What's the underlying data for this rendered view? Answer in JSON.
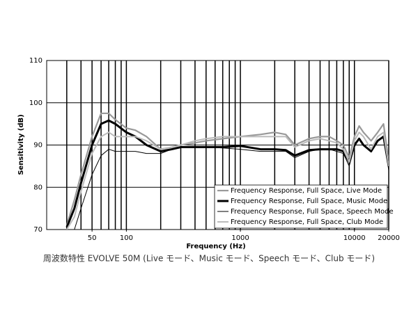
{
  "chart_data": {
    "type": "line",
    "x_label": "Frequency (Hz)",
    "y_label": "Sensitivity (dB)",
    "caption": "周波数特性 EVOLVE 50M (Live モード、Music モード、Speech モード、Club モード)",
    "log_x": true,
    "xlim": [
      20,
      20000
    ],
    "ylim": [
      70,
      110
    ],
    "xticks": [
      50,
      100,
      1000,
      10000,
      20000
    ],
    "yticks": [
      70,
      80,
      90,
      100,
      110
    ],
    "xgrid": [
      30,
      40,
      50,
      60,
      70,
      80,
      90,
      100,
      200,
      300,
      400,
      500,
      600,
      700,
      800,
      900,
      1000,
      2000,
      3000,
      4000,
      5000,
      6000,
      7000,
      8000,
      9000,
      10000,
      20000
    ],
    "grid": true,
    "legend": "lower right",
    "x": [
      30,
      35,
      40,
      50,
      60,
      70,
      80,
      100,
      120,
      150,
      200,
      250,
      300,
      400,
      500,
      700,
      1000,
      1500,
      2000,
      2500,
      3000,
      4000,
      5000,
      6000,
      7000,
      8000,
      9000,
      10000,
      11000,
      12000,
      14000,
      16000,
      18000,
      20000
    ],
    "series": [
      {
        "name": "Frequency Response, Full Space, Live Mode",
        "color": "#999999",
        "width": 2.2,
        "values": [
          71,
          77,
          83,
          92,
          97.5,
          97.5,
          96,
          94,
          93.5,
          92,
          89,
          89.5,
          90,
          90.5,
          91,
          91.5,
          92,
          92.5,
          93,
          92.5,
          90,
          91.5,
          92,
          92,
          91,
          90,
          87,
          92,
          94.5,
          93,
          91,
          93,
          95,
          86
        ]
      },
      {
        "name": "Frequency Response, Full Space, Music Mode",
        "color": "#000000",
        "width": 3,
        "values": [
          70.5,
          75,
          81,
          90,
          95,
          95.8,
          95,
          93,
          92,
          90,
          88.5,
          89,
          89.5,
          89.5,
          89.5,
          89.5,
          89.8,
          89,
          89,
          88.8,
          87.5,
          88.8,
          89,
          89,
          89,
          88.5,
          86,
          90,
          91.5,
          90,
          88.5,
          91,
          92,
          85
        ]
      },
      {
        "name": "Frequency Response, Full Space, Speech Mode",
        "color": "#000000",
        "width": 1,
        "values": [
          68,
          70,
          75,
          83,
          87.5,
          89,
          88.5,
          88.5,
          88.5,
          88,
          88,
          89,
          89.5,
          89.5,
          89.5,
          89.3,
          89,
          88.5,
          88.5,
          88.5,
          87,
          88.5,
          89,
          89,
          88.5,
          88,
          85,
          89.5,
          91.5,
          90,
          88.5,
          91,
          92,
          84
        ]
      },
      {
        "name": "Frequency Response, Full Space, Club Mode",
        "color": "#bbbbbb",
        "width": 2,
        "values": [
          70,
          73,
          79,
          88,
          92,
          93,
          92,
          92,
          92,
          91,
          89,
          89.5,
          90,
          91,
          91.5,
          92,
          92,
          92,
          92,
          92,
          89.5,
          91,
          91.5,
          91,
          90.5,
          89,
          86,
          91,
          93,
          92,
          89,
          92,
          93,
          85
        ]
      }
    ]
  }
}
